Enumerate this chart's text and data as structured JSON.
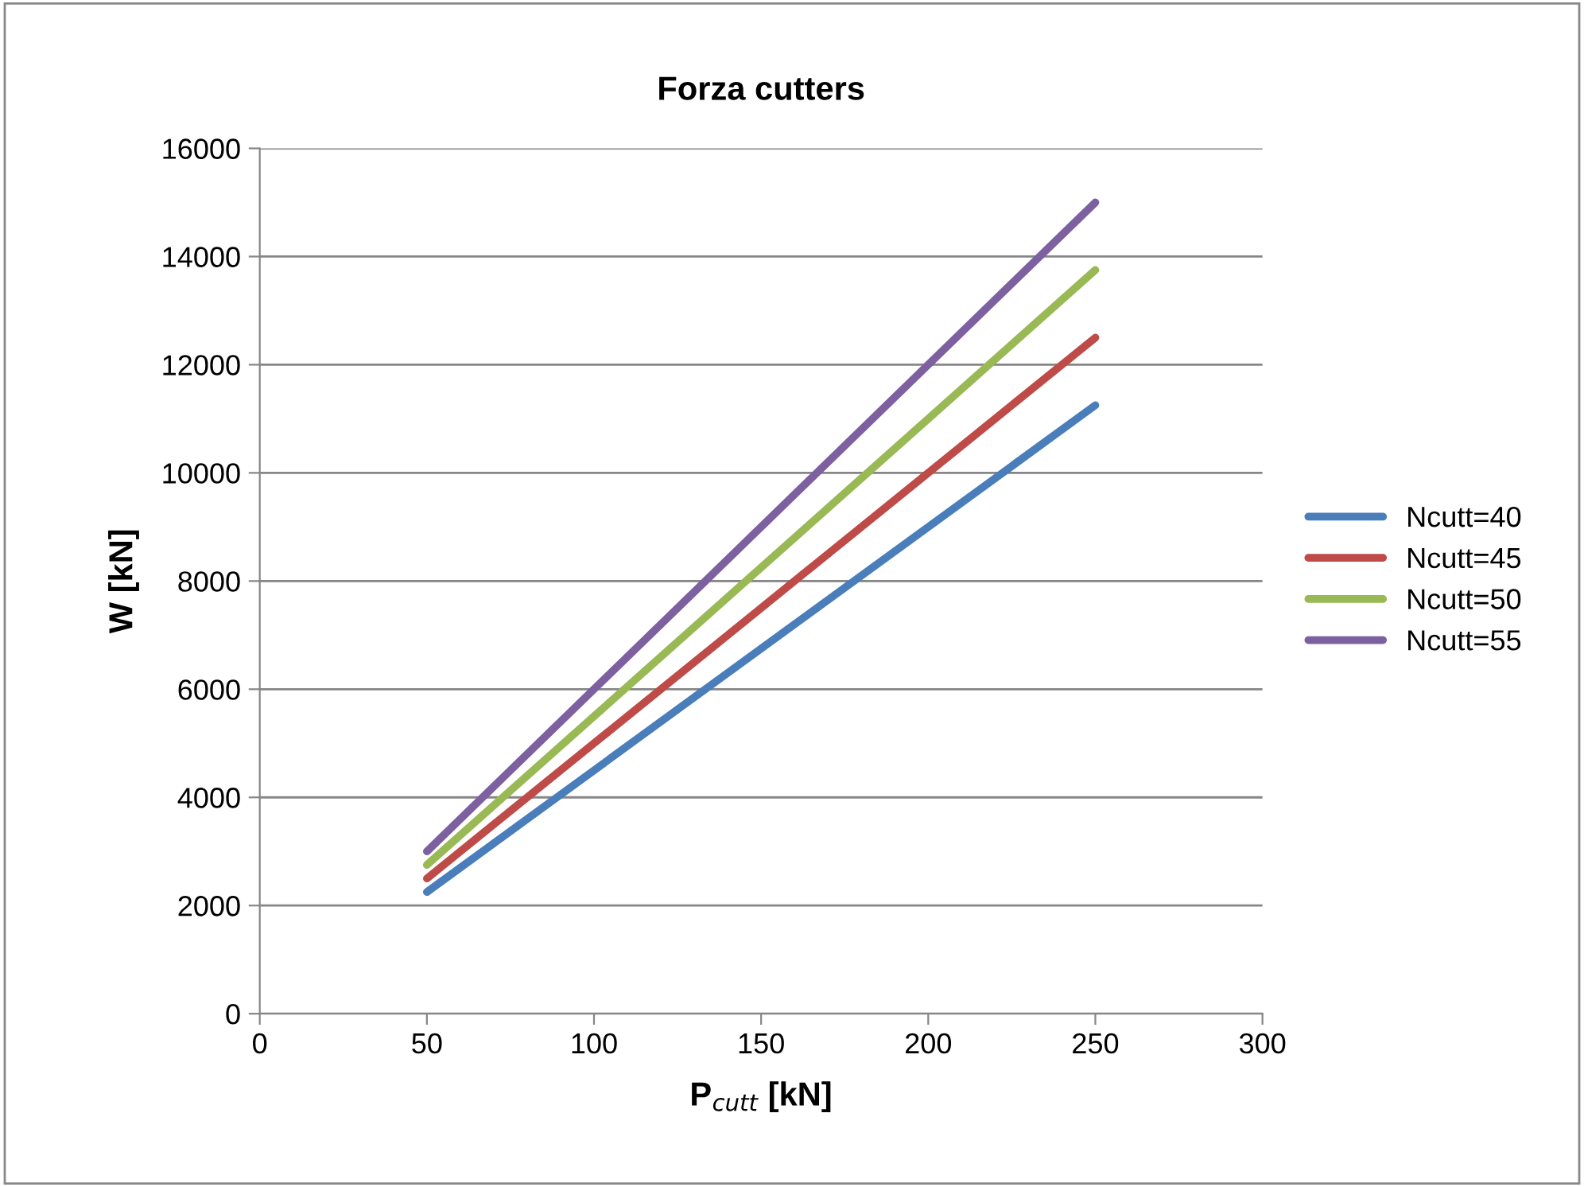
{
  "chart_data": {
    "type": "line",
    "title": "Forza cutters",
    "xlabel": "P$_{cutt}$ [kN]",
    "ylabel": "W [kN]",
    "x": [
      50,
      250
    ],
    "series": [
      {
        "name": "Ncutt=40",
        "color": "#4a7ebb",
        "values": [
          2250,
          11250
        ]
      },
      {
        "name": "Ncutt=45",
        "color": "#be4b48",
        "values": [
          2500,
          12500
        ]
      },
      {
        "name": "Ncutt=50",
        "color": "#98b954",
        "values": [
          2750,
          13750
        ]
      },
      {
        "name": "Ncutt=55",
        "color": "#7d60a0",
        "values": [
          3000,
          15000
        ]
      }
    ],
    "xlim": [
      0,
      300
    ],
    "xticks": [
      0,
      50,
      100,
      150,
      200,
      250,
      300
    ],
    "ylim": [
      0,
      16000
    ],
    "yticks": [
      0,
      2000,
      4000,
      6000,
      8000,
      10000,
      12000,
      14000,
      16000
    ],
    "grid": "y",
    "legend": "right",
    "marker": "none",
    "line_style": "solid"
  }
}
